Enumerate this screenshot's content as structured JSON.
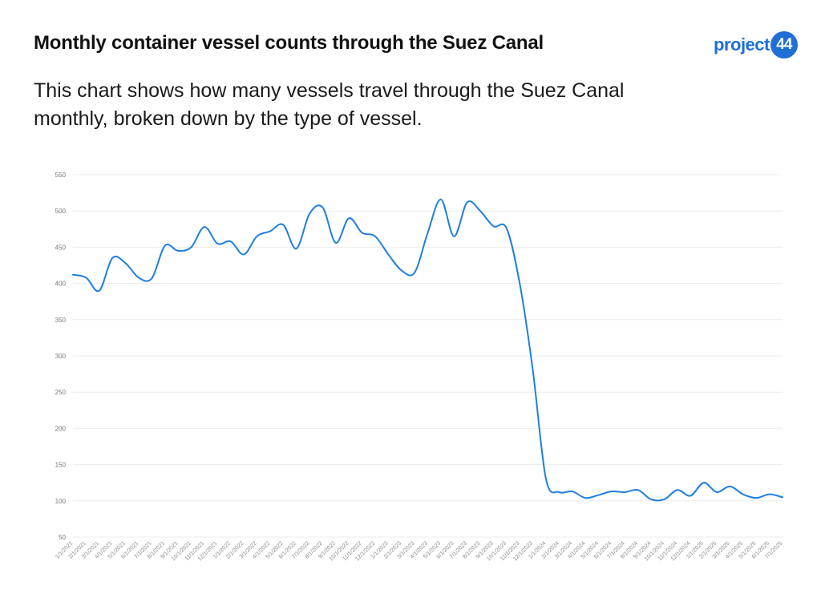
{
  "header": {
    "title": "Monthly container vessel counts through the Suez Canal",
    "subtitle": "This chart shows how many vessels travel through the Suez Canal monthly, broken down by the type of vessel.",
    "logo_word": "project",
    "logo_badge": "44"
  },
  "colors": {
    "line": "#1f7fe0",
    "grid": "#ececec",
    "logo": "#1f6fd6"
  },
  "chart_data": {
    "type": "line",
    "title": "Monthly container vessel counts through the Suez Canal",
    "xlabel": "",
    "ylabel": "",
    "ylim": [
      50,
      550
    ],
    "yticks": [
      50,
      100,
      150,
      200,
      250,
      300,
      350,
      400,
      450,
      500,
      550
    ],
    "grid": true,
    "smooth": true,
    "categories": [
      "1/1/2021",
      "2/1/2021",
      "3/1/2021",
      "4/1/2021",
      "5/1/2021",
      "6/1/2021",
      "7/1/2021",
      "8/1/2021",
      "9/1/2021",
      "10/1/2021",
      "11/1/2021",
      "12/1/2021",
      "1/1/2022",
      "2/1/2022",
      "3/1/2022",
      "4/1/2022",
      "5/1/2022",
      "6/1/2022",
      "7/1/2022",
      "8/1/2022",
      "9/1/2022",
      "10/1/2022",
      "11/1/2022",
      "12/1/2022",
      "1/1/2023",
      "2/1/2023",
      "3/1/2023",
      "4/1/2023",
      "5/1/2023",
      "6/1/2023",
      "7/1/2023",
      "8/1/2023",
      "9/1/2023",
      "10/1/2023",
      "11/1/2023",
      "12/1/2023",
      "1/1/2024",
      "2/1/2024",
      "3/1/2024",
      "4/1/2024",
      "5/1/2024",
      "6/1/2024",
      "7/1/2024",
      "8/1/2024",
      "9/1/2024",
      "10/1/2024",
      "11/1/2024",
      "12/1/2024",
      "1/1/2025",
      "2/1/2025",
      "3/1/2025",
      "4/1/2025",
      "5/1/2025",
      "6/1/2025",
      "7/1/2025"
    ],
    "values": [
      412,
      408,
      390,
      435,
      428,
      408,
      407,
      452,
      445,
      450,
      478,
      455,
      458,
      440,
      465,
      472,
      481,
      448,
      496,
      505,
      456,
      490,
      470,
      465,
      440,
      418,
      415,
      470,
      516,
      465,
      512,
      500,
      479,
      476,
      400,
      280,
      130,
      112,
      113,
      104,
      108,
      113,
      112,
      115,
      102,
      102,
      115,
      107,
      125,
      112,
      120,
      109,
      104,
      109,
      105
    ]
  }
}
